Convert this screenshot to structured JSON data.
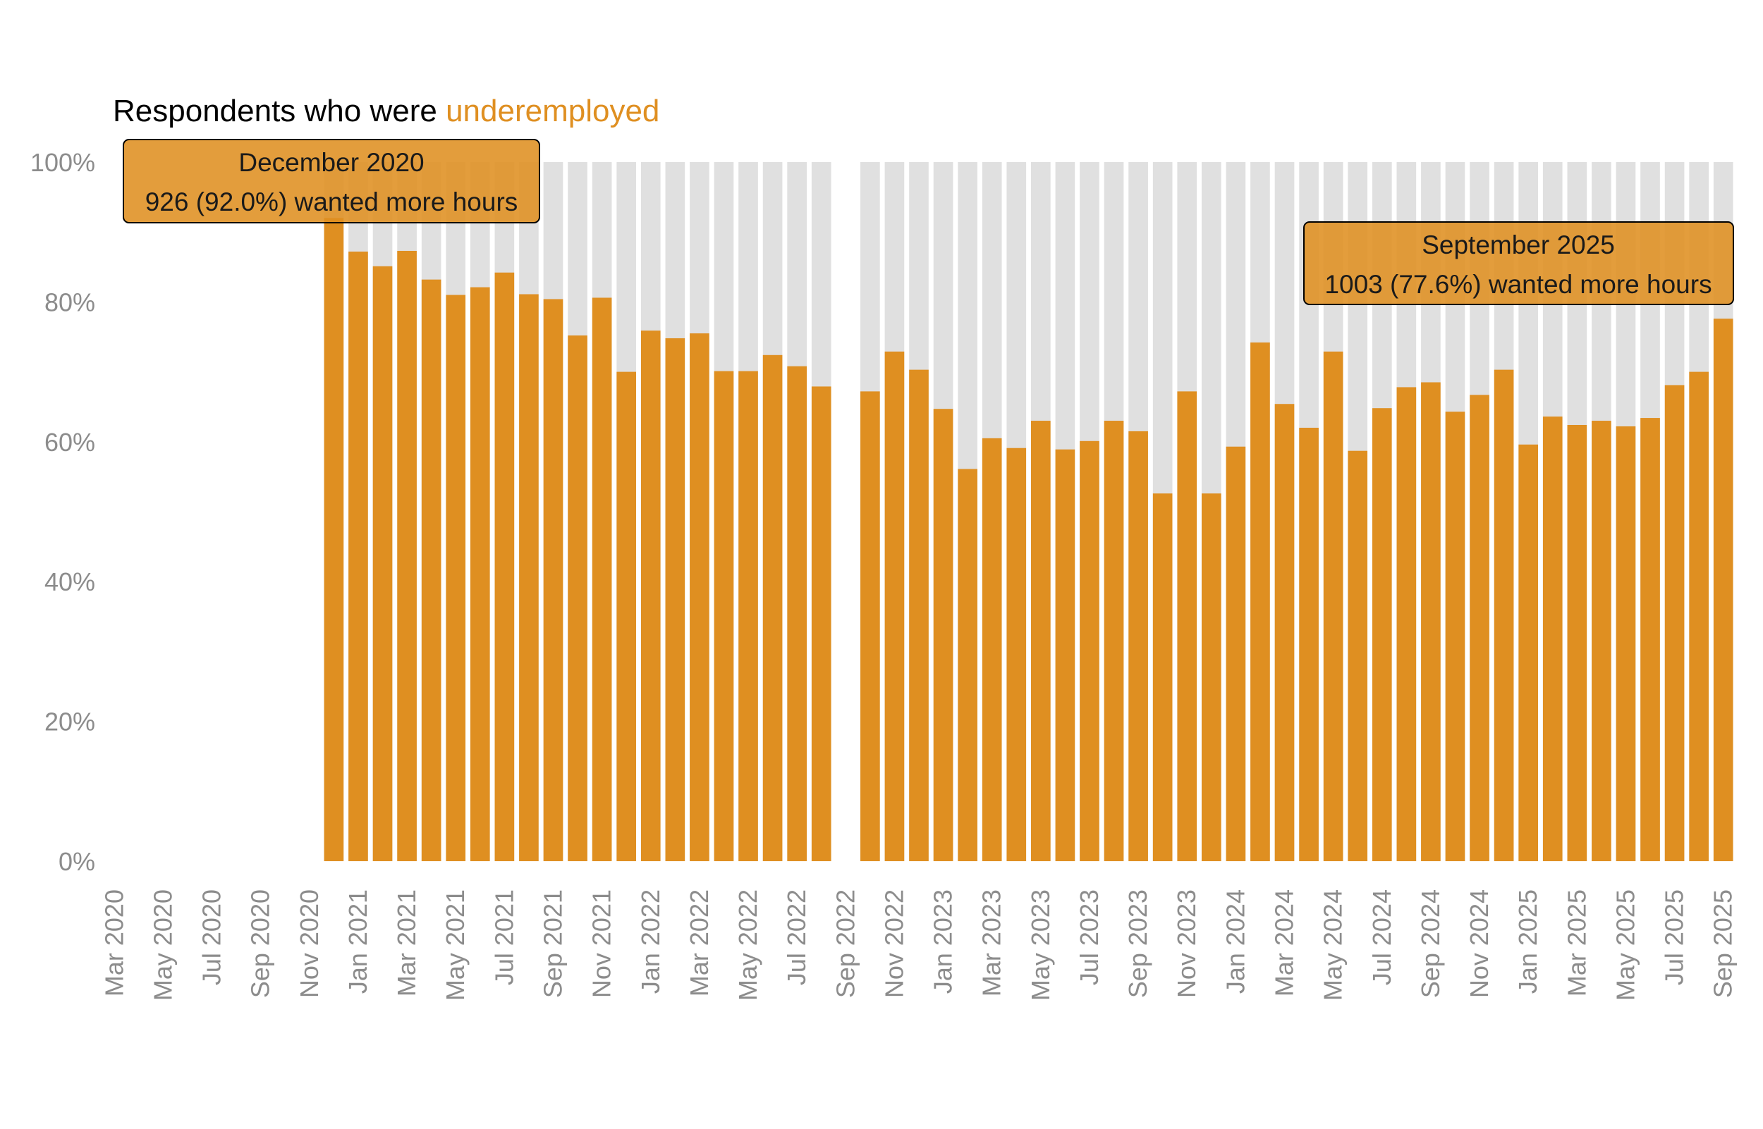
{
  "chart_data": {
    "type": "bar",
    "title": {
      "prefix": "Respondents who were ",
      "highlight": "underemployed"
    },
    "xlabel": "",
    "ylabel": "",
    "ylim": [
      0,
      100
    ],
    "yticks": [
      "0%",
      "20%",
      "40%",
      "60%",
      "80%",
      "100%"
    ],
    "x_tick_labels": [
      "Mar 2020",
      "May 2020",
      "Jul 2020",
      "Sep 2020",
      "Nov 2020",
      "Jan 2021",
      "Mar 2021",
      "May 2021",
      "Jul 2021",
      "Sep 2021",
      "Nov 2021",
      "Jan 2022",
      "Mar 2022",
      "May 2022",
      "Jul 2022",
      "Sep 2022",
      "Nov 2022",
      "Jan 2023",
      "Mar 2023",
      "May 2023",
      "Jul 2023",
      "Sep 2023",
      "Nov 2023",
      "Jan 2024",
      "Mar 2024",
      "May 2024",
      "Jul 2024",
      "Sep 2024",
      "Nov 2024",
      "Jan 2025",
      "Mar 2025",
      "May 2025",
      "Jul 2025",
      "Sep 2025"
    ],
    "colors": {
      "underemployed": "#df8f21",
      "background_bar": "#e0e0e0",
      "annotation_fill": "#df8f21"
    },
    "categories": [
      "Mar 2020",
      "Apr 2020",
      "May 2020",
      "Jun 2020",
      "Jul 2020",
      "Aug 2020",
      "Sep 2020",
      "Oct 2020",
      "Nov 2020",
      "Dec 2020",
      "Jan 2021",
      "Feb 2021",
      "Mar 2021",
      "Apr 2021",
      "May 2021",
      "Jun 2021",
      "Jul 2021",
      "Aug 2021",
      "Sep 2021",
      "Oct 2021",
      "Nov 2021",
      "Dec 2021",
      "Jan 2022",
      "Feb 2022",
      "Mar 2022",
      "Apr 2022",
      "May 2022",
      "Jun 2022",
      "Jul 2022",
      "Aug 2022",
      "Sep 2022",
      "Oct 2022",
      "Nov 2022",
      "Dec 2022",
      "Jan 2023",
      "Feb 2023",
      "Mar 2023",
      "Apr 2023",
      "May 2023",
      "Jun 2023",
      "Jul 2023",
      "Aug 2023",
      "Sep 2023",
      "Oct 2023",
      "Nov 2023",
      "Dec 2023",
      "Jan 2024",
      "Feb 2024",
      "Mar 2024",
      "Apr 2024",
      "May 2024",
      "Jun 2024",
      "Jul 2024",
      "Aug 2024",
      "Sep 2024",
      "Oct 2024",
      "Nov 2024",
      "Dec 2024",
      "Jan 2025",
      "Feb 2025",
      "Mar 2025",
      "Apr 2025",
      "May 2025",
      "Jun 2025",
      "Jul 2025",
      "Aug 2025",
      "Sep 2025"
    ],
    "series": [
      {
        "name": "underemployed",
        "values": [
          null,
          null,
          null,
          null,
          null,
          null,
          null,
          null,
          null,
          92.0,
          87.2,
          85.1,
          87.3,
          83.2,
          81.0,
          82.1,
          84.2,
          81.1,
          80.4,
          75.2,
          80.6,
          70.0,
          75.9,
          74.8,
          75.5,
          70.1,
          70.1,
          72.4,
          70.8,
          67.9,
          null,
          67.2,
          72.9,
          70.3,
          64.7,
          56.1,
          60.5,
          59.1,
          63.0,
          58.9,
          60.1,
          63.0,
          61.5,
          52.6,
          67.2,
          52.6,
          59.3,
          74.2,
          65.4,
          62.0,
          72.9,
          58.7,
          64.8,
          67.8,
          68.5,
          64.3,
          66.7,
          70.3,
          59.6,
          63.6,
          62.4,
          63.0,
          62.2,
          63.4,
          68.1,
          70.0,
          77.6
        ]
      }
    ],
    "annotations": [
      {
        "month": "December 2020",
        "detail": "926 (92.0%) wanted more hours"
      },
      {
        "month": "September 2025",
        "detail": "1003 (77.6%) wanted more hours"
      }
    ]
  }
}
